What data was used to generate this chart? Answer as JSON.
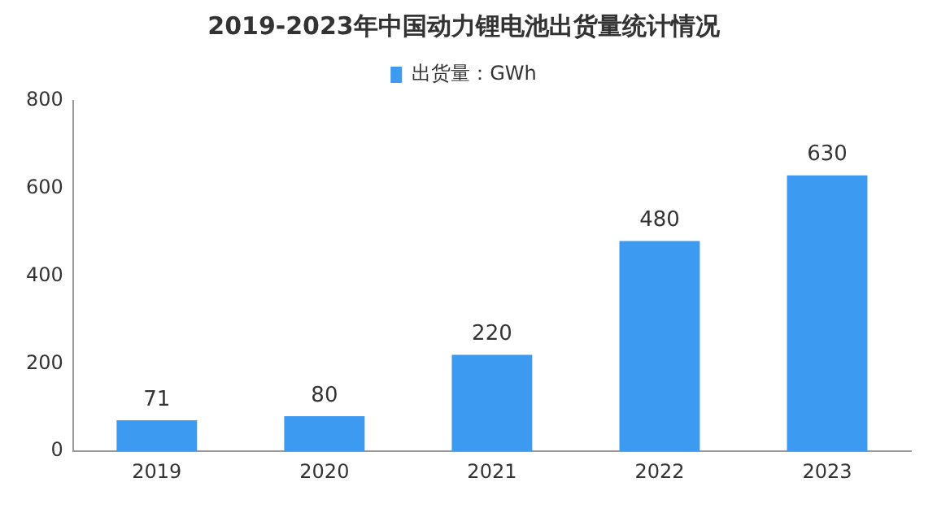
{
  "chart_data": {
    "type": "bar",
    "title": "2019-2023年中国动力锂电池出货量统计情况",
    "categories": [
      "2019",
      "2020",
      "2021",
      "2022",
      "2023"
    ],
    "series": [
      {
        "name": "出货量：GWh",
        "color": "#3c9af0",
        "values": [
          71,
          80,
          220,
          480,
          630
        ]
      }
    ],
    "ylim": [
      0,
      800
    ],
    "yticks": [
      0,
      200,
      400,
      600,
      800
    ],
    "grid": false,
    "legend": "top",
    "data_labels": true
  }
}
